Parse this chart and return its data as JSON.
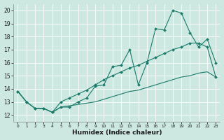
{
  "xlabel": "Humidex (Indice chaleur)",
  "ylabel": "",
  "bg_color": "#cce8e0",
  "line_color": "#1a7a6a",
  "xlim": [
    -0.5,
    23.5
  ],
  "ylim": [
    11.5,
    20.5
  ],
  "xticks": [
    0,
    1,
    2,
    3,
    4,
    5,
    6,
    7,
    8,
    9,
    10,
    11,
    12,
    13,
    14,
    15,
    16,
    17,
    18,
    19,
    20,
    21,
    22,
    23
  ],
  "yticks": [
    12,
    13,
    14,
    15,
    16,
    17,
    18,
    19,
    20
  ],
  "xtick_fontsize": 4.2,
  "ytick_fontsize": 5.5,
  "xlabel_fontsize": 6.5,
  "series": [
    [
      13.8,
      13.0,
      12.5,
      12.5,
      12.2,
      12.6,
      12.6,
      13.0,
      13.3,
      14.2,
      14.3,
      15.7,
      15.8,
      17.0,
      14.3,
      16.0,
      18.6,
      18.5,
      20.0,
      19.8,
      18.3,
      17.2,
      17.8,
      16.0
    ],
    [
      13.8,
      13.0,
      12.5,
      12.5,
      12.2,
      13.0,
      13.3,
      13.6,
      13.9,
      14.3,
      14.7,
      15.0,
      15.3,
      15.6,
      15.8,
      16.1,
      16.4,
      16.7,
      17.0,
      17.2,
      17.5,
      17.5,
      17.2,
      14.9
    ],
    [
      13.8,
      13.0,
      12.5,
      12.5,
      12.2,
      12.6,
      12.7,
      12.8,
      12.9,
      13.0,
      13.2,
      13.4,
      13.6,
      13.8,
      13.9,
      14.1,
      14.3,
      14.5,
      14.7,
      14.9,
      15.0,
      15.2,
      15.3,
      14.9
    ]
  ],
  "markers": [
    true,
    true,
    false
  ]
}
